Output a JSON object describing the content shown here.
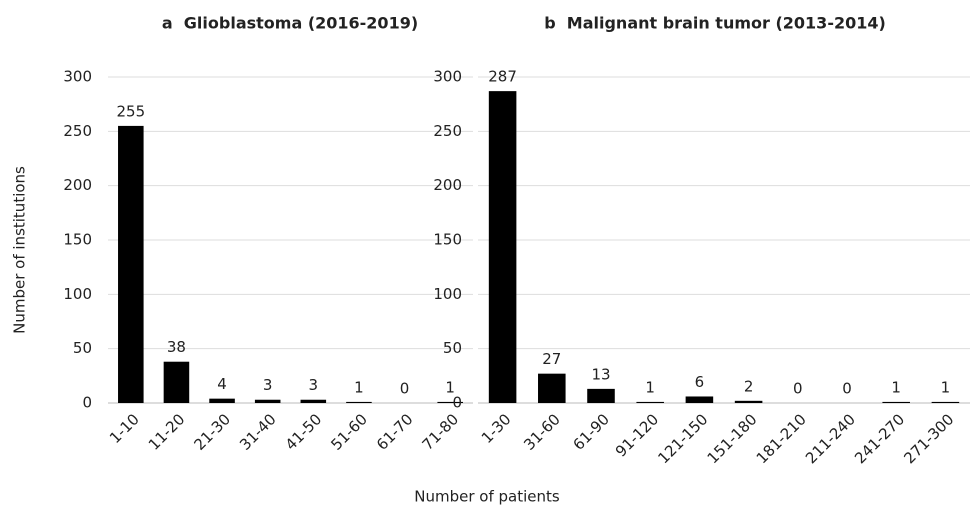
{
  "xlabel": "Number of patients",
  "chart_data": [
    {
      "type": "bar",
      "title": "a  Glioblastoma (2016-2019)",
      "ylabel": "Number of institutions",
      "categories": [
        "1-10",
        "11-20",
        "21-30",
        "31-40",
        "41-50",
        "51-60",
        "61-70",
        "71-80"
      ],
      "values": [
        255,
        38,
        4,
        3,
        3,
        1,
        0,
        1
      ],
      "color": "#000000",
      "ylim": [
        0,
        300
      ],
      "yticks": [
        0,
        50,
        100,
        150,
        200,
        250,
        300
      ],
      "grid": true
    },
    {
      "type": "bar",
      "title": "b  Malignant brain tumor (2013-2014)",
      "categories": [
        "1-30",
        "31-60",
        "61-90",
        "91-120",
        "121-150",
        "151-180",
        "181-210",
        "211-240",
        "241-270",
        "271-300"
      ],
      "values": [
        287,
        27,
        13,
        1,
        6,
        2,
        0,
        0,
        1,
        1
      ],
      "color": "#000000",
      "ylim": [
        0,
        300
      ],
      "yticks": [
        0,
        50,
        100,
        150,
        200,
        250,
        300
      ],
      "grid": true
    }
  ]
}
